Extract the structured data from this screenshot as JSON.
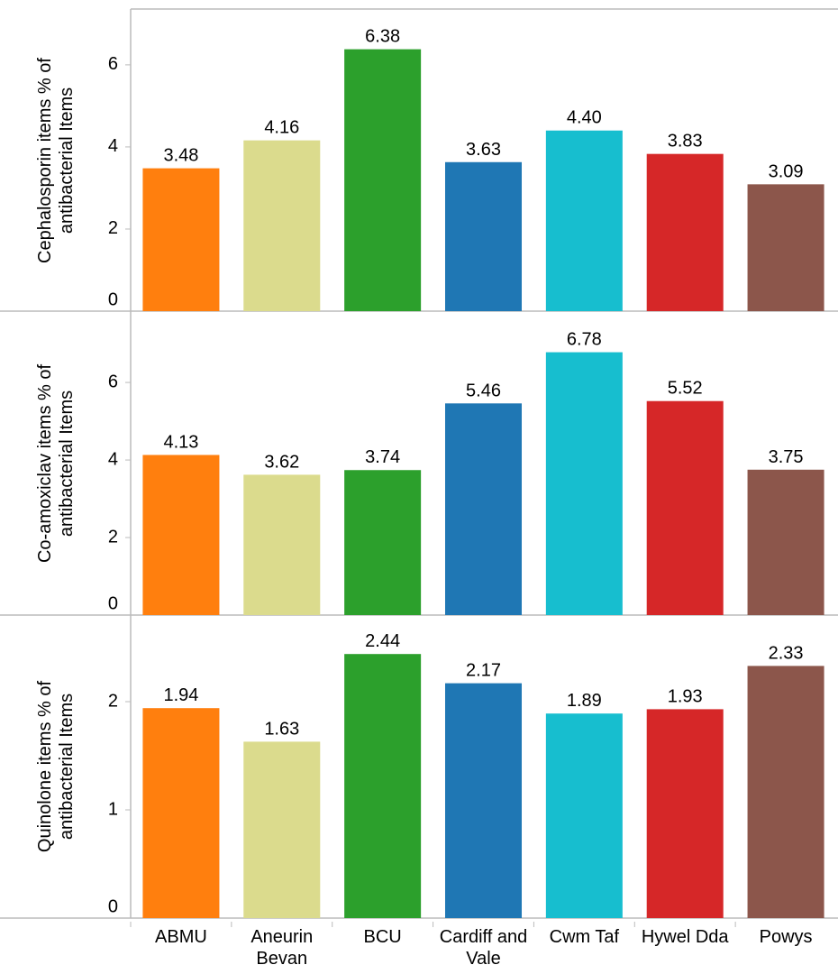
{
  "chart_data": [
    {
      "type": "bar",
      "y_label": "Cephalosporin items % of antibacterial Items",
      "values": [
        3.48,
        4.16,
        6.38,
        3.63,
        4.4,
        3.83,
        3.09
      ],
      "value_labels": [
        "3.48",
        "4.16",
        "6.38",
        "3.63",
        "4.40",
        "3.83",
        "3.09"
      ],
      "colors": [
        "#ff7f0e",
        "#dbdb8d",
        "#2ca02c",
        "#1f77b4",
        "#17becf",
        "#d62728",
        "#8c564b"
      ],
      "ylim": [
        0,
        7.36
      ],
      "yticks": [
        0,
        2,
        4,
        6
      ]
    },
    {
      "type": "bar",
      "y_label": "Co-amoxiclav items % of antibacterial Items",
      "values": [
        4.13,
        3.62,
        3.74,
        5.46,
        6.78,
        5.52,
        3.75
      ],
      "value_labels": [
        "4.13",
        "3.62",
        "3.74",
        "5.46",
        "6.78",
        "5.52",
        "3.75"
      ],
      "colors": [
        "#ff7f0e",
        "#dbdb8d",
        "#2ca02c",
        "#1f77b4",
        "#17becf",
        "#d62728",
        "#8c564b"
      ],
      "ylim": [
        0,
        7.84
      ],
      "yticks": [
        0,
        2,
        4,
        6
      ]
    },
    {
      "type": "bar",
      "y_label": "Quinolone items % of antibacterial Items",
      "categories": [
        "ABMU",
        "Aneurin Bevan",
        "BCU",
        "Cardiff and Vale",
        "Cwm Taf",
        "Hywel Dda",
        "Powys"
      ],
      "values": [
        1.94,
        1.63,
        2.44,
        2.17,
        1.89,
        1.93,
        2.33
      ],
      "value_labels": [
        "1.94",
        "1.63",
        "2.44",
        "2.17",
        "1.89",
        "1.93",
        "2.33"
      ],
      "colors": [
        "#ff7f0e",
        "#dbdb8d",
        "#2ca02c",
        "#1f77b4",
        "#17becf",
        "#d62728",
        "#8c564b"
      ],
      "ylim": [
        0,
        2.8
      ],
      "yticks": [
        0,
        1,
        2
      ]
    }
  ]
}
